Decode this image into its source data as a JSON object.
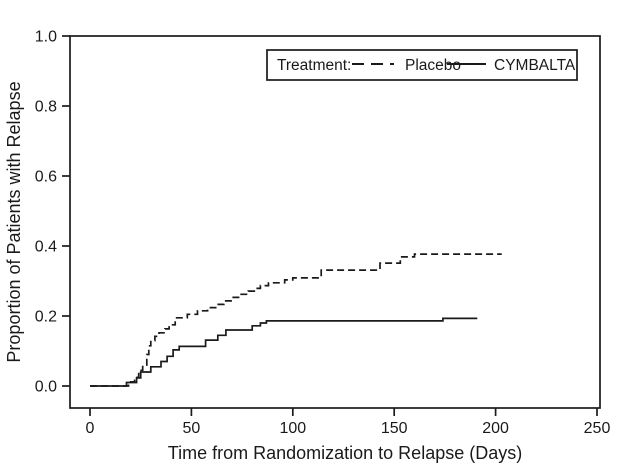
{
  "chart_data": {
    "type": "line",
    "subtype": "kaplan-meier-step",
    "title": "",
    "xlabel": "Time from Randomization to Relapse (Days)",
    "ylabel": "Proportion of Patients with Relapse",
    "xlim": [
      0,
      250
    ],
    "ylim": [
      0.0,
      1.0
    ],
    "xticks": [
      "0",
      "50",
      "100",
      "150",
      "200",
      "250"
    ],
    "yticks": [
      "0.0",
      "0.2",
      "0.4",
      "0.6",
      "0.8",
      "1.0"
    ],
    "grid": false,
    "legend_position": "top-right-inside-box",
    "legend": {
      "title": "Treatment:",
      "entries": [
        {
          "label": "Placebo",
          "style": "dashed"
        },
        {
          "label": "CYMBALTA",
          "style": "solid"
        }
      ]
    },
    "colors": {
      "line": "#1a1a1a",
      "background": "#ffffff"
    },
    "series": [
      {
        "name": "Placebo",
        "style": "dashed",
        "points": [
          [
            0,
            0.0
          ],
          [
            19,
            0.012
          ],
          [
            22,
            0.025
          ],
          [
            24,
            0.045
          ],
          [
            26,
            0.06
          ],
          [
            28,
            0.09
          ],
          [
            29,
            0.115
          ],
          [
            30,
            0.13
          ],
          [
            32,
            0.142
          ],
          [
            34,
            0.152
          ],
          [
            37,
            0.163
          ],
          [
            39,
            0.175
          ],
          [
            42,
            0.195
          ],
          [
            48,
            0.205
          ],
          [
            53,
            0.215
          ],
          [
            58,
            0.224
          ],
          [
            62,
            0.233
          ],
          [
            66,
            0.243
          ],
          [
            70,
            0.253
          ],
          [
            74,
            0.262
          ],
          [
            78,
            0.271
          ],
          [
            81,
            0.279
          ],
          [
            84,
            0.287
          ],
          [
            88,
            0.295
          ],
          [
            96,
            0.303
          ],
          [
            100,
            0.309
          ],
          [
            114,
            0.331
          ],
          [
            143,
            0.351
          ],
          [
            153,
            0.369
          ],
          [
            160,
            0.377
          ],
          [
            203,
            0.377
          ]
        ]
      },
      {
        "name": "CYMBALTA",
        "style": "solid",
        "points": [
          [
            0,
            0.0
          ],
          [
            18,
            0.01
          ],
          [
            23,
            0.023
          ],
          [
            25,
            0.04
          ],
          [
            30,
            0.055
          ],
          [
            35,
            0.07
          ],
          [
            38,
            0.085
          ],
          [
            41,
            0.103
          ],
          [
            44,
            0.113
          ],
          [
            57,
            0.131
          ],
          [
            63,
            0.145
          ],
          [
            67,
            0.16
          ],
          [
            80,
            0.172
          ],
          [
            84,
            0.18
          ],
          [
            87,
            0.186
          ],
          [
            174,
            0.193
          ],
          [
            191,
            0.193
          ]
        ]
      }
    ]
  }
}
